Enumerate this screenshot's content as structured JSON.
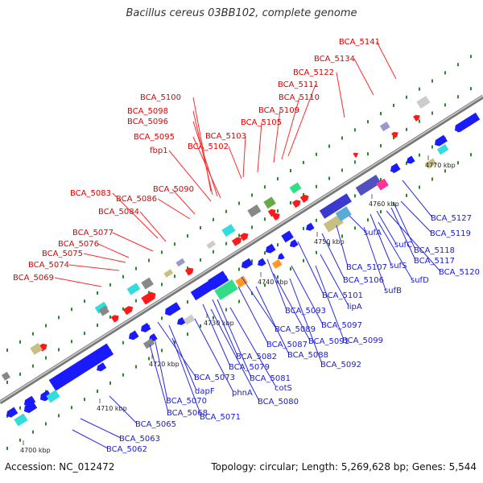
{
  "title": "Bacillus cereus 03BB102, complete genome",
  "footer": {
    "accession": "Accession: NC_012472",
    "stats": "Topology: circular; Length: 5,269,628 bp; Genes: 5,544"
  },
  "colors": {
    "top_label": "#e00000",
    "bottom_label": "#1a1ad6",
    "backbone": "#8a8a8a",
    "dots": "#1f8f1f"
  },
  "kbp_ticks": [
    "4700 kbp",
    "4710 kbp",
    "4720 kbp",
    "4730 kbp",
    "4740 kbp",
    "4750 kbp",
    "4760 kbp",
    "4770 kbp"
  ],
  "top_labels": [
    "BCA_5141",
    "BCA_5134",
    "BCA_5122",
    "BCA_5111",
    "BCA_5110",
    "BCA_5109",
    "BCA_5105",
    "BCA_5103",
    "BCA_5102",
    "BCA_5100",
    "BCA_5098",
    "BCA_5096",
    "BCA_5095",
    "fbp1",
    "BCA_5090",
    "BCA_5086",
    "BCA_5083",
    "BCA_5084",
    "BCA_5077",
    "BCA_5076",
    "BCA_5075",
    "BCA_5074",
    "BCA_5069"
  ],
  "bottom_labels": [
    "BCA_5127",
    "BCA_5119",
    "BCA_5118",
    "BCA_5117",
    "BCA_5120",
    "sufC",
    "sufS",
    "sufD",
    "sufA",
    "sufB",
    "BCA_5107",
    "BCA_5106",
    "BCA_5101",
    "lipA",
    "BCA_5093",
    "BCA_5097",
    "BCA_5089",
    "BCA_5091",
    "BCA_5099",
    "BCA_5087",
    "BCA_5088",
    "BCA_5082",
    "BCA_5092",
    "BCA_5079",
    "BCA_5081",
    "BCA_5073",
    "cotS",
    "dapF",
    "phnA",
    "BCA_5080",
    "BCA_5070",
    "BCA_5071",
    "BCA_5068",
    "BCA_5065",
    "BCA_5063",
    "BCA_5062"
  ]
}
